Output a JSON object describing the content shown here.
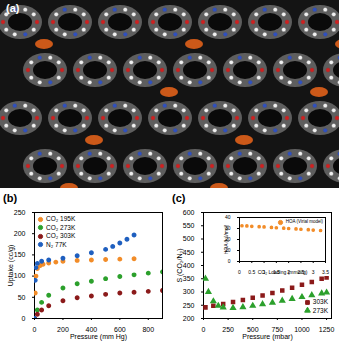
{
  "chart_data": [
    {
      "type": "image",
      "title": "(a)"
    },
    {
      "type": "scatter",
      "title": "(b)",
      "x_label": "Pressure (mm Hg)",
      "y_label": "Uptake (cc/g)",
      "xlim": [
        0,
        900
      ],
      "xticks": [
        0,
        200,
        400,
        600,
        800
      ],
      "ylim": [
        0,
        250
      ],
      "yticks": [
        0,
        50,
        100,
        150,
        200,
        250
      ],
      "legend": "top-left",
      "series": [
        {
          "name": "CO₂ 195K",
          "color": "#f28c28",
          "marker": "circle",
          "x": [
            0,
            5,
            10,
            20,
            40,
            60,
            100,
            150,
            200,
            300,
            400,
            500,
            600,
            700
          ],
          "values": [
            0,
            60,
            100,
            118,
            125,
            128,
            131,
            133,
            135,
            137,
            138,
            139,
            140,
            141
          ]
        },
        {
          "name": "CO₂ 273K",
          "color": "#2ca02c",
          "marker": "circle",
          "x": [
            0,
            20,
            50,
            100,
            200,
            300,
            400,
            500,
            600,
            700,
            800,
            900
          ],
          "values": [
            0,
            20,
            38,
            55,
            72,
            82,
            88,
            94,
            99,
            103,
            107,
            110
          ]
        },
        {
          "name": "CO₂ 303K",
          "color": "#8b1a1a",
          "marker": "circle",
          "x": [
            0,
            20,
            50,
            100,
            200,
            300,
            400,
            500,
            600,
            700,
            800,
            900
          ],
          "values": [
            0,
            10,
            20,
            30,
            42,
            49,
            53,
            57,
            60,
            62,
            64,
            66
          ]
        },
        {
          "name": "N₂ 77K",
          "color": "#1f5fbf",
          "marker": "circle",
          "x": [
            0,
            5,
            10,
            20,
            50,
            100,
            200,
            300,
            400,
            500,
            550,
            600,
            650,
            700
          ],
          "values": [
            0,
            90,
            120,
            130,
            135,
            138,
            142,
            148,
            155,
            163,
            170,
            178,
            187,
            197
          ]
        }
      ]
    },
    {
      "type": "scatter",
      "title": "(c)",
      "x_label": "Pressure (mbar)",
      "y_label": "S (CO₂/N₂)",
      "xlim": [
        0,
        1300
      ],
      "xticks": [
        0,
        250,
        500,
        750,
        1000,
        1250
      ],
      "ylim": [
        200,
        600
      ],
      "yticks": [
        200,
        250,
        300,
        350,
        400,
        450,
        500,
        550,
        600
      ],
      "legend": "bottom-right",
      "series": [
        {
          "name": "303K",
          "color": "#8b1a1a",
          "marker": "square",
          "x": [
            20,
            100,
            200,
            300,
            400,
            500,
            600,
            700,
            800,
            900,
            1000,
            1100,
            1200,
            1250
          ],
          "values": [
            242,
            248,
            255,
            262,
            270,
            278,
            287,
            296,
            306,
            316,
            327,
            338,
            350,
            355
          ]
        },
        {
          "name": "273K",
          "color": "#2ca02c",
          "marker": "triangle",
          "x": [
            20,
            50,
            100,
            150,
            200,
            300,
            400,
            500,
            600,
            700,
            800,
            900,
            1000,
            1100,
            1200,
            1250
          ],
          "values": [
            350,
            300,
            265,
            248,
            242,
            240,
            243,
            248,
            254,
            260,
            267,
            274,
            281,
            288,
            295,
            298
          ]
        }
      ],
      "inset": {
        "type": "scatter",
        "x_label": "CO₂ Loading (mmol/g)",
        "y_label": "HOA (kJ/mol)",
        "xlim": [
          0,
          3.5
        ],
        "xticks": [
          0,
          0.5,
          1,
          1.5,
          2,
          2.5,
          3,
          3.5
        ],
        "ylim": [
          0,
          40
        ],
        "yticks": [
          0,
          10,
          20,
          30,
          40
        ],
        "legend": "top-right",
        "series": [
          {
            "name": "HOA (Virial model)",
            "color": "#f28c28",
            "marker": "circle",
            "x": [
              0.1,
              0.3,
              0.5,
              0.8,
              1.0,
              1.3,
              1.5,
              1.8,
              2.0,
              2.3,
              2.5,
              2.8,
              3.0,
              3.3
            ],
            "values": [
              32.5,
              32.3,
              32,
              31.7,
              31.4,
              31,
              30.7,
              30.3,
              30,
              29.6,
              29.3,
              28.9,
              28.6,
              28.2
            ]
          }
        ]
      }
    }
  ]
}
